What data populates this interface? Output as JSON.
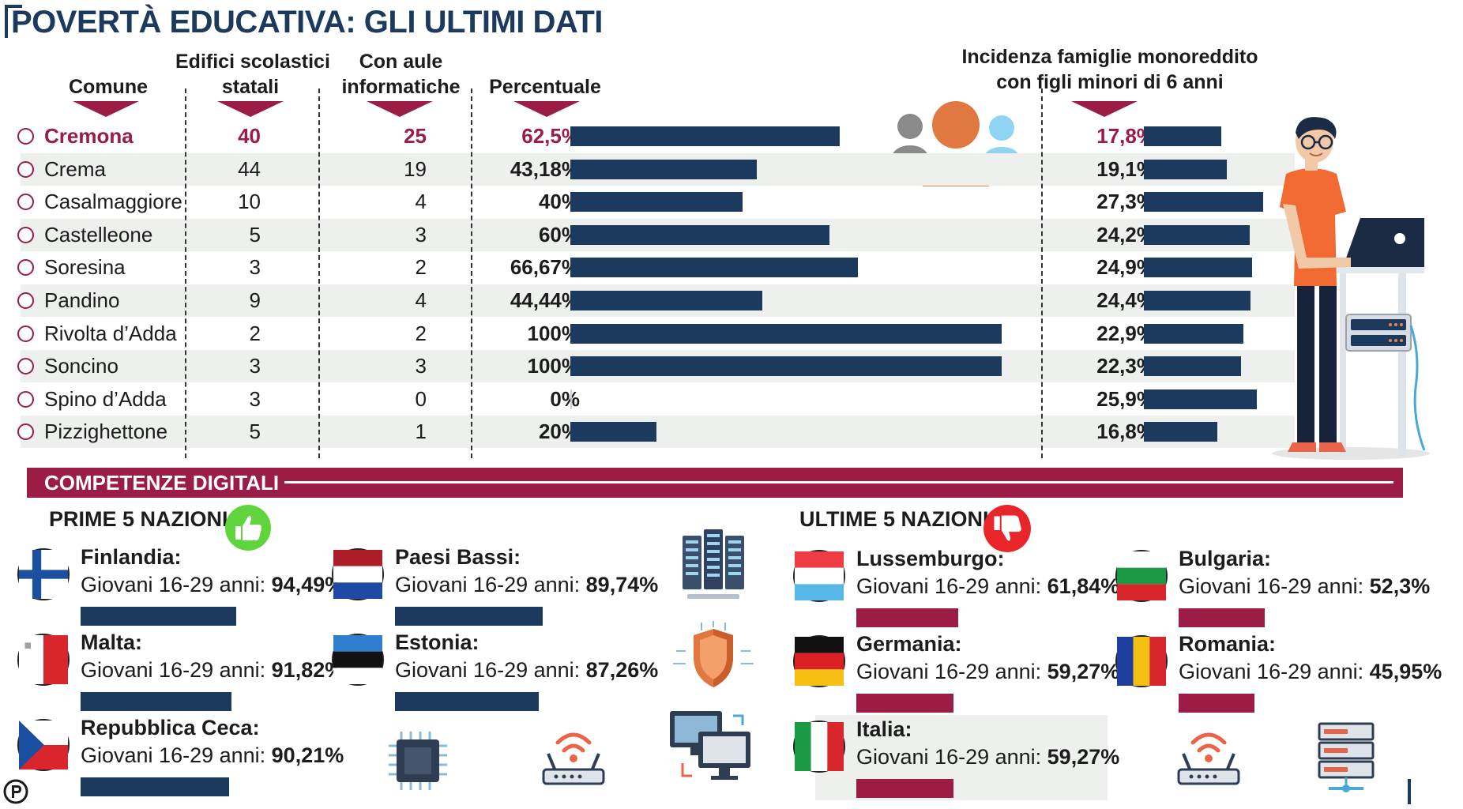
{
  "title": "POVERTÀ EDUCATIVA: GLI ULTIMI DATI",
  "headers": {
    "comune": "Comune",
    "edifici_1": "Edifici scolastici",
    "edifici_2": "statali",
    "aule_1": "Con aule",
    "aule_2": "informatiche",
    "percentuale": "Percentuale",
    "incidenza_1": "Incidenza famiglie monoreddito",
    "incidenza_2": "con figli minori di 6 anni"
  },
  "colors": {
    "navy": "#1b3a5e",
    "crimson": "#9b1c45",
    "row_alt": "#eef0ee"
  },
  "chart_data": {
    "type": "table",
    "rows": [
      {
        "comune": "Cremona",
        "edifici": "40",
        "aule": "25",
        "percentuale_label": "62,5%",
        "percentuale": 62.5,
        "incidenza_label": "17,8%",
        "incidenza": 17.8,
        "highlight": true
      },
      {
        "comune": "Crema",
        "edifici": "44",
        "aule": "19",
        "percentuale_label": "43,18%",
        "percentuale": 43.18,
        "incidenza_label": "19,1%",
        "incidenza": 19.1
      },
      {
        "comune": "Casalmaggiore",
        "edifici": "10",
        "aule": "4",
        "percentuale_label": "40%",
        "percentuale": 40,
        "incidenza_label": "27,3%",
        "incidenza": 27.3
      },
      {
        "comune": "Castelleone",
        "edifici": "5",
        "aule": "3",
        "percentuale_label": "60%",
        "percentuale": 60,
        "incidenza_label": "24,2%",
        "incidenza": 24.2
      },
      {
        "comune": "Soresina",
        "edifici": "3",
        "aule": "2",
        "percentuale_label": "66,67%",
        "percentuale": 66.67,
        "incidenza_label": "24,9%",
        "incidenza": 24.9
      },
      {
        "comune": "Pandino",
        "edifici": "9",
        "aule": "4",
        "percentuale_label": "44,44%",
        "percentuale": 44.44,
        "incidenza_label": "24,4%",
        "incidenza": 24.4
      },
      {
        "comune": "Rivolta d’Adda",
        "edifici": "2",
        "aule": "2",
        "percentuale_label": "100%",
        "percentuale": 100,
        "incidenza_label": "22,9%",
        "incidenza": 22.9
      },
      {
        "comune": "Soncino",
        "edifici": "3",
        "aule": "3",
        "percentuale_label": "100%",
        "percentuale": 100,
        "incidenza_label": "22,3%",
        "incidenza": 22.3
      },
      {
        "comune": "Spino d’Adda",
        "edifici": "3",
        "aule": "0",
        "percentuale_label": "0%",
        "percentuale": 0,
        "incidenza_label": "25,9%",
        "incidenza": 25.9
      },
      {
        "comune": "Pizzighettone",
        "edifici": "5",
        "aule": "1",
        "percentuale_label": "20%",
        "percentuale": 20,
        "incidenza_label": "16,8%",
        "incidenza": 16.8
      }
    ]
  },
  "digital": {
    "section_title": "COMPETENZE DIGITALI",
    "top_title": "PRIME  5 NAZIONI",
    "bottom_title": "ULTIME  5 NAZIONI",
    "prefix": "Giovani 16-29 anni: ",
    "top": [
      {
        "name": "Finlandia:",
        "value_label": "94,49%",
        "value": 94.49,
        "flag": "finland-flag"
      },
      {
        "name": "Malta:",
        "value_label": "91,82%",
        "value": 91.82,
        "flag": "malta-flag"
      },
      {
        "name": "Repubblica Ceca:",
        "value_label": "90,21%",
        "value": 90.21,
        "flag": "czech-flag"
      },
      {
        "name": "Paesi Bassi:",
        "value_label": "89,74%",
        "value": 89.74,
        "flag": "netherlands-flag"
      },
      {
        "name": "Estonia:",
        "value_label": "87,26%",
        "value": 87.26,
        "flag": "estonia-flag"
      }
    ],
    "bottom": [
      {
        "name": "Lussemburgo:",
        "value_label": "61,84%",
        "value": 61.84,
        "flag": "luxembourg-flag"
      },
      {
        "name": "Germania:",
        "value_label": "59,27%",
        "value": 59.27,
        "flag": "germany-flag"
      },
      {
        "name": "Italia:",
        "value_label": "59,27%",
        "value": 59.27,
        "flag": "italy-flag"
      },
      {
        "name": "Bulgaria:",
        "value_label": "52,3%",
        "value": 52.3,
        "flag": "bulgaria-flag"
      },
      {
        "name": "Romania:",
        "value_label": "45,95%",
        "value": 45.95,
        "flag": "romania-flag"
      }
    ]
  }
}
